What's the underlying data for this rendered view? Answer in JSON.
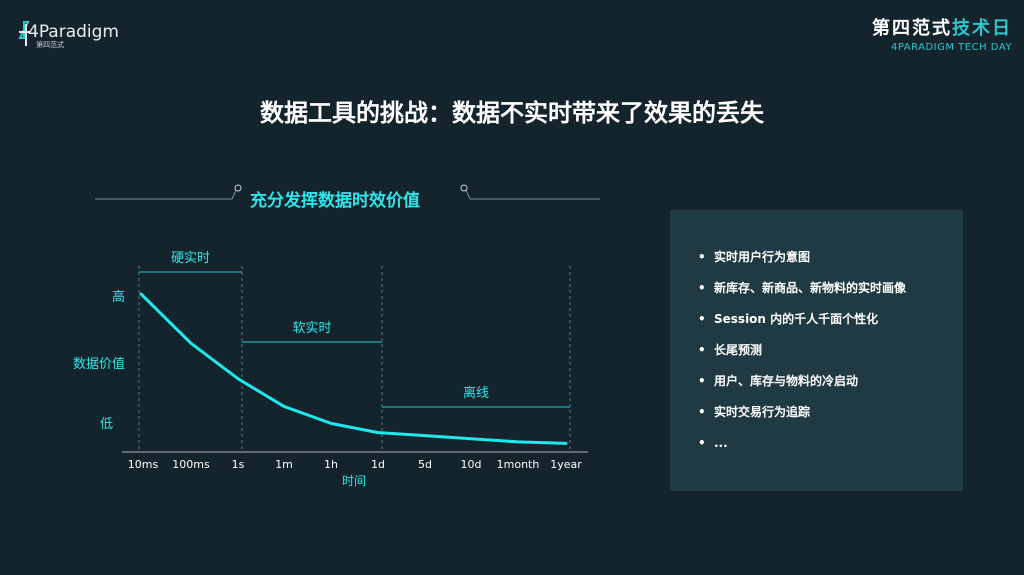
{
  "header": {
    "logo_text": "4Paradigm",
    "logo_sub": "第四范式",
    "brand_title_part1": "第四范式",
    "brand_title_part2": "技术日",
    "brand_subtitle": "4PARADIGM TECH DAY"
  },
  "title": "数据工具的挑战：数据不实时带来了效果的丢失",
  "section_title": "充分发挥数据时效价值",
  "diagram": {
    "y_axis_label": "数据价值",
    "y_high": "高",
    "y_low": "低",
    "x_axis_label": "时间",
    "x_ticks": [
      "10ms",
      "100ms",
      "1s",
      "1m",
      "1h",
      "1d",
      "5d",
      "10d",
      "1month",
      "1year"
    ],
    "ranges": [
      {
        "label": "硬实时",
        "from": "10ms",
        "to": "1s"
      },
      {
        "label": "软实时",
        "from": "1s",
        "to": "1d"
      },
      {
        "label": "离线",
        "from": "1d",
        "to": "1year"
      }
    ],
    "curve_value_levels": [
      1.0,
      0.68,
      0.45,
      0.27,
      0.16,
      0.1,
      0.08,
      0.06,
      0.04,
      0.03
    ],
    "colors": {
      "curve": "#1ee8ec",
      "accent": "#2ec7cf",
      "axis": "#a8b4b8",
      "grid": "#5f7680"
    }
  },
  "panel": {
    "bullet": "•",
    "items": [
      "实时用户行为意图",
      "新库存、新商品、新物料的实时画像",
      "Session 内的千人千面个性化",
      "长尾预测",
      "用户、库存与物料的冷启动",
      "实时交易行为追踪",
      "..."
    ]
  }
}
